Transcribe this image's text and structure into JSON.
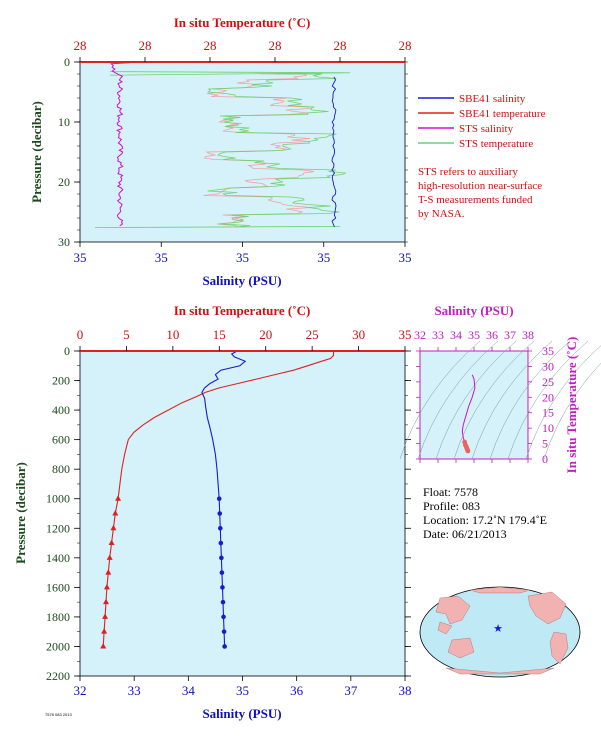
{
  "colors": {
    "panel_bg": "#d5f1fa",
    "temperature": "#e02020",
    "salinity": "#1a1ad0",
    "sts_salinity": "#d010d0",
    "sts_temperature": "#6fcf6f",
    "sts_temp_pink": "#f0a0a0",
    "pressure_axis": "#1d4a1d",
    "ts_axis": "#c020c0",
    "map_land": "#f2b2b2",
    "map_ocean": "#bfe9f5"
  },
  "top_chart": {
    "temp_axis_label": "In situ Temperature (˚C)",
    "temp_ticks": [
      "28",
      "28",
      "28",
      "28",
      "28",
      "28"
    ],
    "sal_axis_label": "Salinity (PSU)",
    "sal_ticks": [
      "35",
      "35",
      "35",
      "35",
      "35"
    ],
    "pressure_axis_label": "Pressure (decibar)",
    "pressure_ticks": [
      "0",
      "10",
      "20",
      "30"
    ],
    "legend": [
      {
        "label": "SBE41 salinity",
        "color": "#1a1ad0"
      },
      {
        "label": "SBE41 temperature",
        "color": "#e02020"
      },
      {
        "label": "STS salinity",
        "color": "#d010d0"
      },
      {
        "label": "STS temperature",
        "color": "#6fcf6f"
      }
    ],
    "note_lines": [
      "STS refers to auxiliary",
      "high-resolution near-surface",
      "T-S measurements funded",
      "by NASA."
    ]
  },
  "main_chart": {
    "temp_axis_label": "In situ Temperature (˚C)",
    "temp_ticks": [
      "0",
      "5",
      "10",
      "15",
      "20",
      "25",
      "30",
      "35"
    ],
    "sal_axis_label": "Salinity (PSU)",
    "sal_ticks": [
      "32",
      "33",
      "34",
      "35",
      "36",
      "37",
      "38"
    ],
    "pressure_axis_label": "Pressure (decibar)",
    "pressure_ticks": [
      "0",
      "200",
      "400",
      "600",
      "800",
      "1000",
      "1200",
      "1400",
      "1600",
      "1800",
      "2000",
      "2200"
    ]
  },
  "ts_chart": {
    "sal_axis_label": "Salinity (PSU)",
    "sal_ticks": [
      "32",
      "33",
      "34",
      "35",
      "36",
      "37",
      "38"
    ],
    "temp_axis_label": "In situ Temperature (˚C)",
    "temp_ticks": [
      "0",
      "5",
      "10",
      "15",
      "20",
      "25",
      "30",
      "35"
    ]
  },
  "float_info": {
    "float": "Float:  7578",
    "profile": "Profile:  083",
    "location": "Location:  17.2˚N  179.4˚E",
    "date": "Date:  06/21/2013"
  },
  "footer_text": "7578 083 2013",
  "chart_data": [
    {
      "type": "line",
      "title": "",
      "xlabel": "Salinity (PSU)",
      "ylabel": "Pressure (decibar)",
      "ylim": [
        0,
        2200
      ],
      "xlim_salinity": [
        32,
        38
      ],
      "xlim_temperature": [
        0,
        35
      ],
      "series": [
        {
          "name": "SBE41 temperature",
          "axis": "temperature",
          "points": [
            [
              27.3,
              0
            ],
            [
              27.3,
              30
            ],
            [
              27.0,
              50
            ],
            [
              26.0,
              70
            ],
            [
              24.5,
              100
            ],
            [
              23.0,
              130
            ],
            [
              21.0,
              160
            ],
            [
              19.0,
              190
            ],
            [
              17.0,
              220
            ],
            [
              15.0,
              250
            ],
            [
              13.5,
              280
            ],
            [
              12.5,
              310
            ],
            [
              11.0,
              350
            ],
            [
              9.5,
              400
            ],
            [
              8.0,
              450
            ],
            [
              6.8,
              500
            ],
            [
              5.8,
              550
            ],
            [
              5.2,
              600
            ],
            [
              4.8,
              700
            ],
            [
              4.5,
              800
            ],
            [
              4.3,
              900
            ],
            [
              4.1,
              1000
            ],
            [
              3.8,
              1100
            ],
            [
              3.6,
              1200
            ],
            [
              3.4,
              1300
            ],
            [
              3.2,
              1400
            ],
            [
              3.05,
              1500
            ],
            [
              2.9,
              1600
            ],
            [
              2.8,
              1700
            ],
            [
              2.7,
              1800
            ],
            [
              2.6,
              1900
            ],
            [
              2.5,
              2000
            ]
          ]
        },
        {
          "name": "SBE41 salinity",
          "axis": "salinity",
          "points": [
            [
              34.9,
              0
            ],
            [
              34.8,
              20
            ],
            [
              34.85,
              40
            ],
            [
              35.05,
              70
            ],
            [
              34.95,
              100
            ],
            [
              34.6,
              130
            ],
            [
              34.5,
              160
            ],
            [
              34.55,
              190
            ],
            [
              34.4,
              220
            ],
            [
              34.3,
              250
            ],
            [
              34.25,
              280
            ],
            [
              34.3,
              320
            ],
            [
              34.32,
              380
            ],
            [
              34.35,
              450
            ],
            [
              34.4,
              520
            ],
            [
              34.45,
              600
            ],
            [
              34.5,
              700
            ],
            [
              34.53,
              800
            ],
            [
              34.55,
              900
            ],
            [
              34.57,
              1000
            ],
            [
              34.58,
              1100
            ],
            [
              34.59,
              1200
            ],
            [
              34.6,
              1300
            ],
            [
              34.61,
              1400
            ],
            [
              34.62,
              1500
            ],
            [
              34.63,
              1600
            ],
            [
              34.64,
              1700
            ],
            [
              34.65,
              1800
            ],
            [
              34.66,
              1900
            ],
            [
              34.67,
              2000
            ]
          ]
        }
      ]
    },
    {
      "type": "scatter",
      "title": "",
      "xlabel": "Salinity (PSU)",
      "ylabel": "In situ Temperature (˚C)",
      "xlim": [
        32,
        38
      ],
      "ylim": [
        0,
        35
      ],
      "series": [
        {
          "name": "",
          "points": [
            [
              34.9,
              27.3
            ],
            [
              35.0,
              26.0
            ],
            [
              35.05,
              23.0
            ],
            [
              34.9,
              20.0
            ],
            [
              34.7,
              17.0
            ],
            [
              34.55,
              14.0
            ],
            [
              34.4,
              11.0
            ],
            [
              34.35,
              9.0
            ],
            [
              34.4,
              7.0
            ],
            [
              34.48,
              5.5
            ],
            [
              34.52,
              4.5
            ],
            [
              34.57,
              4.0
            ],
            [
              34.6,
              3.5
            ],
            [
              34.63,
              3.0
            ],
            [
              34.66,
              2.6
            ]
          ]
        }
      ]
    }
  ]
}
